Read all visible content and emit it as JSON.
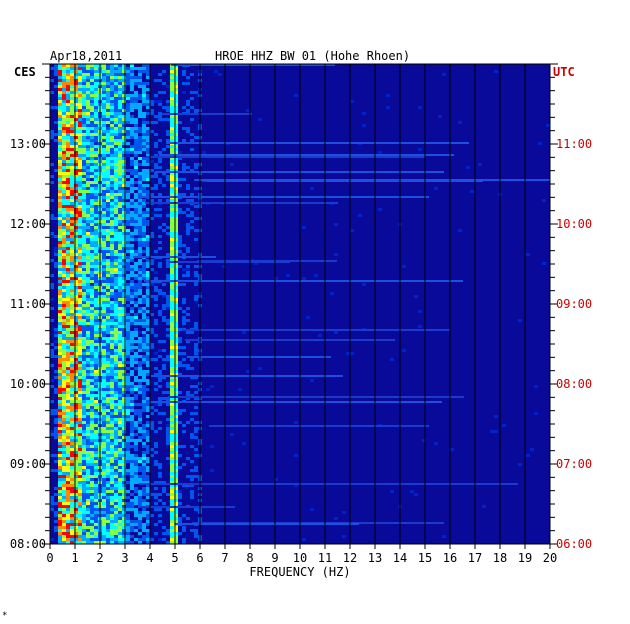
{
  "chart_data": {
    "type": "heatmap",
    "date_label": "Apr18,2011",
    "title": "HROE HHZ BW 01 (Hohe Rhoen)",
    "left_timezone": "CES",
    "right_timezone": "UTC",
    "xlabel": "FREQUENCY (HZ)",
    "xlim": [
      0,
      20
    ],
    "x_ticks": [
      "0",
      "1",
      "2",
      "3",
      "4",
      "5",
      "6",
      "7",
      "8",
      "9",
      "10",
      "11",
      "12",
      "13",
      "14",
      "15",
      "16",
      "17",
      "18",
      "19",
      "20"
    ],
    "left_time_ticks": [
      "08:00",
      "09:00",
      "10:00",
      "11:00",
      "12:00",
      "13:00"
    ],
    "right_time_ticks": [
      "06:00",
      "07:00",
      "08:00",
      "09:00",
      "10:00",
      "11:00"
    ],
    "time_range_ces": [
      "08:00",
      "13:50"
    ],
    "colorscale": [
      "#000088",
      "#0022cc",
      "#0055ee",
      "#00aaff",
      "#00ffff",
      "#88ff44",
      "#ffff00",
      "#ff8800",
      "#ff0000"
    ],
    "background_color": "#0a0a9a",
    "dominant_bands_hz": [
      {
        "from": 0.2,
        "to": 1.2,
        "level": "high"
      },
      {
        "from": 1.2,
        "to": 3.0,
        "level": "medium"
      },
      {
        "from": 3.0,
        "to": 4.0,
        "level": "low-medium"
      },
      {
        "from": 4.8,
        "to": 5.0,
        "level": "line"
      }
    ],
    "footer_mark": "*"
  }
}
